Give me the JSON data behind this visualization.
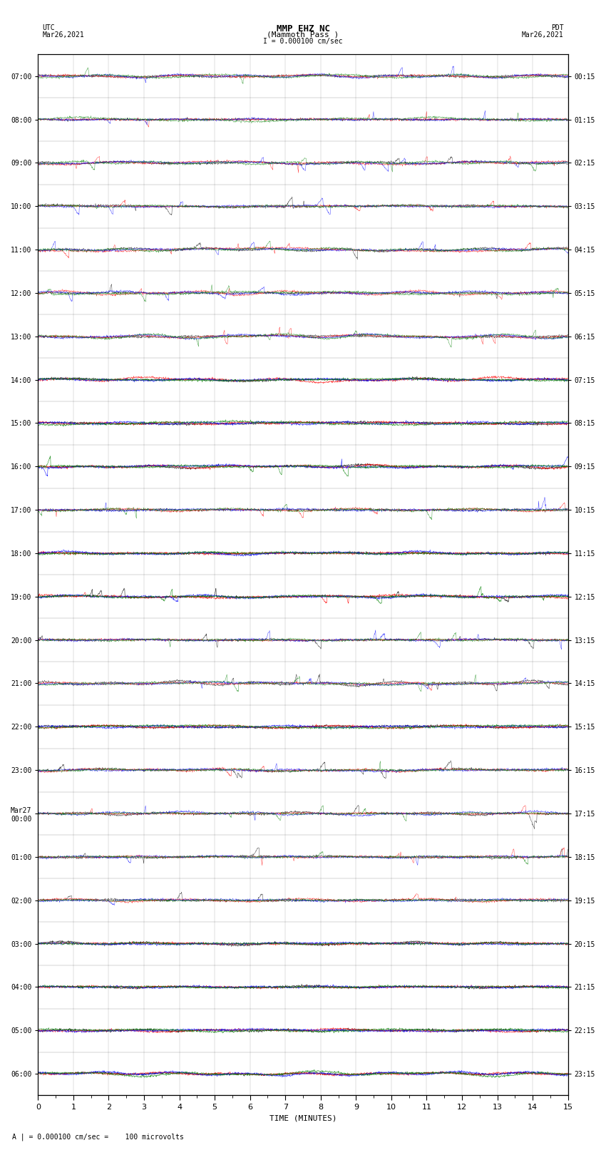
{
  "title_line1": "MMP EHZ NC",
  "title_line2": "(Mammoth Pass )",
  "scale_text": "I = 0.000100 cm/sec",
  "left_label_top": "UTC",
  "left_label_date": "Mar26,2021",
  "right_label_top": "PDT",
  "right_label_date": "Mar26,2021",
  "bottom_label": "TIME (MINUTES)",
  "bottom_note": "A | = 0.000100 cm/sec =    100 microvolts",
  "utc_times": [
    "07:00",
    "08:00",
    "09:00",
    "10:00",
    "11:00",
    "12:00",
    "13:00",
    "14:00",
    "15:00",
    "16:00",
    "17:00",
    "18:00",
    "19:00",
    "20:00",
    "21:00",
    "22:00",
    "23:00",
    "Mar27\n00:00",
    "01:00",
    "02:00",
    "03:00",
    "04:00",
    "05:00",
    "06:00"
  ],
  "pdt_times": [
    "00:15",
    "01:15",
    "02:15",
    "03:15",
    "04:15",
    "05:15",
    "06:15",
    "07:15",
    "08:15",
    "09:15",
    "10:15",
    "11:15",
    "12:15",
    "13:15",
    "14:15",
    "15:15",
    "16:15",
    "17:15",
    "18:15",
    "19:15",
    "20:15",
    "21:15",
    "22:15",
    "23:15"
  ],
  "n_rows": 24,
  "n_traces_per_row": 4,
  "minutes": 15,
  "colors": [
    "black",
    "red",
    "blue",
    "green"
  ],
  "background_color": "white",
  "amplitude_map": [
    3.5,
    3.5,
    3.5,
    3.5,
    3.0,
    3.0,
    2.5,
    0.3,
    0.2,
    0.4,
    0.5,
    0.2,
    0.3,
    2.5,
    2.5,
    0.15,
    0.8,
    3.0,
    3.0,
    2.5,
    0.08,
    0.08,
    0.08,
    0.08
  ],
  "spike_map": [
    true,
    true,
    true,
    true,
    true,
    true,
    true,
    false,
    false,
    true,
    true,
    false,
    true,
    true,
    true,
    false,
    true,
    true,
    true,
    true,
    false,
    false,
    false,
    false
  ]
}
